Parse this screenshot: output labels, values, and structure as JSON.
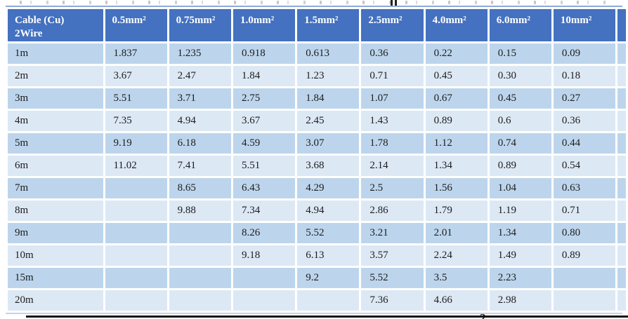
{
  "table": {
    "header": {
      "corner_line1": "Cable (Cu)",
      "corner_line2": "2Wire",
      "columns": [
        "0.5mm²",
        "0.75mm²",
        "1.0mm²",
        "1.5mm²",
        "2.5mm²",
        "4.0mm²",
        "6.0mm²",
        "10mm²"
      ]
    },
    "rows": [
      {
        "label": "1m",
        "values": [
          "1.837",
          "1.235",
          "0.918",
          "0.613",
          "0.36",
          "0.22",
          "0.15",
          "0.09"
        ]
      },
      {
        "label": "2m",
        "values": [
          "3.67",
          "2.47",
          "1.84",
          "1.23",
          "0.71",
          "0.45",
          "0.30",
          "0.18"
        ]
      },
      {
        "label": "3m",
        "values": [
          "5.51",
          "3.71",
          "2.75",
          "1.84",
          "1.07",
          "0.67",
          "0.45",
          "0.27"
        ]
      },
      {
        "label": "4m",
        "values": [
          "7.35",
          "4.94",
          "3.67",
          "2.45",
          "1.43",
          "0.89",
          "0.6",
          "0.36"
        ]
      },
      {
        "label": "5m",
        "values": [
          "9.19",
          "6.18",
          "4.59",
          "3.07",
          "1.78",
          "1.12",
          "0.74",
          "0.44"
        ]
      },
      {
        "label": "6m",
        "values": [
          "11.02",
          "7.41",
          "5.51",
          "3.68",
          "2.14",
          "1.34",
          "0.89",
          "0.54"
        ]
      },
      {
        "label": "7m",
        "values": [
          "",
          "8.65",
          "6.43",
          "4.29",
          "2.5",
          "1.56",
          "1.04",
          "0.63"
        ]
      },
      {
        "label": "8m",
        "values": [
          "",
          "9.88",
          "7.34",
          "4.94",
          "2.86",
          "1.79",
          "1.19",
          "0.71"
        ]
      },
      {
        "label": "9m",
        "values": [
          "",
          "",
          "8.26",
          "5.52",
          "3.21",
          "2.01",
          "1.34",
          "0.80"
        ]
      },
      {
        "label": "10m",
        "values": [
          "",
          "",
          "9.18",
          "6.13",
          "3.57",
          "2.24",
          "1.49",
          "0.89"
        ]
      },
      {
        "label": "15m",
        "values": [
          "",
          "",
          "",
          "9.2",
          "5.52",
          "3.5",
          "2.23",
          ""
        ]
      },
      {
        "label": "20m",
        "values": [
          "",
          "",
          "",
          "",
          "7.36",
          "4.66",
          "2.98",
          ""
        ]
      }
    ]
  },
  "fragments": {
    "partial_character_below_table": "2"
  },
  "colors": {
    "header_bg": "#4471C0",
    "header_text": "#FFFFFF",
    "row_band_dark": "#BDD5EC",
    "row_band_light": "#DDE8F5",
    "body_text": "#1C1C1C",
    "table_border_blue": "#8EA9DB",
    "bottom_rule_black": "#141414"
  }
}
